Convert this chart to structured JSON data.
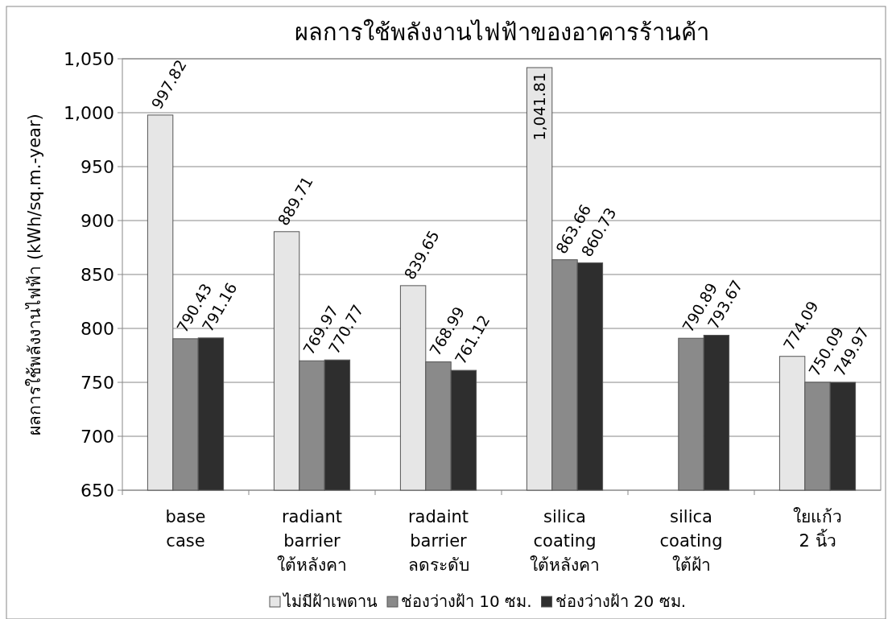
{
  "chart_data": {
    "type": "bar",
    "title": "ผลการใช้พลังงานไฟฟ้าของอาคารร้านค้า",
    "ylabel": "ผลการใช้พลังงานไฟฟ้า  (kWh/sq.m.-year)",
    "categories": [
      "base\ncase",
      "radiant\nbarrier\nใต้หลังคา",
      "radaint\nbarrier\nลดระดับ",
      "silica\ncoating\nใต้หลังคา",
      "silica\ncoating\nใต้ฝ้า",
      "ใยแก้ว\n2 นิ้ว"
    ],
    "series": [
      {
        "name": "ไม่มีฝ้าเพดาน",
        "color": "#e6e6e6",
        "values": [
          997.82,
          889.71,
          839.65,
          1041.81,
          null,
          774.09
        ],
        "value_labels": [
          "997.82",
          "889.71",
          "839.65",
          "1,041.81",
          null,
          "774.09"
        ]
      },
      {
        "name": "ช่องว่างฝ้า 10 ซม.",
        "color": "#8a8a8a",
        "values": [
          790.43,
          769.97,
          768.99,
          863.66,
          790.89,
          750.09
        ],
        "value_labels": [
          "790.43",
          "769.97",
          "768.99",
          "863.66",
          "790.89",
          "750.09"
        ]
      },
      {
        "name": "ช่องว่างฝ้า 20 ซม.",
        "color": "#2e2e2e",
        "values": [
          791.16,
          770.77,
          761.12,
          860.73,
          793.67,
          749.97
        ],
        "value_labels": [
          "791.16",
          "770.77",
          "761.12",
          "860.73",
          "793.67",
          "749.97"
        ]
      }
    ],
    "ylim": [
      650,
      1050
    ],
    "yticks": [
      {
        "value": 650,
        "label": "650"
      },
      {
        "value": 700,
        "label": "700"
      },
      {
        "value": 750,
        "label": "750"
      },
      {
        "value": 800,
        "label": "800"
      },
      {
        "value": 850,
        "label": "850"
      },
      {
        "value": 900,
        "label": "900"
      },
      {
        "value": 950,
        "label": "950"
      },
      {
        "value": 1000,
        "label": "1,000"
      },
      {
        "value": 1050,
        "label": "1,050"
      }
    ],
    "grid": "y",
    "legend": "bottom"
  }
}
